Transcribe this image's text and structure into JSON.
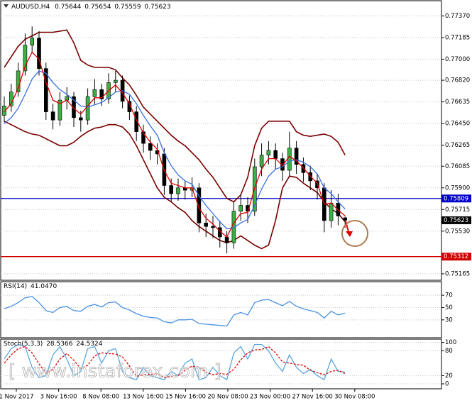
{
  "chart_data": {
    "type": "candlestick",
    "symbol": "AUDUSD,H4",
    "open": [
      0.7652,
      0.766,
      0.7672,
      0.769,
      0.7712,
      0.7718,
      0.7692,
      0.7655,
      0.7648,
      0.7665,
      0.7668,
      0.765,
      0.7648,
      0.7668,
      0.7674,
      0.7666,
      0.768,
      0.7682,
      0.7664,
      0.7655,
      0.7638,
      0.7628,
      0.7622,
      0.7619,
      0.7592,
      0.7585,
      0.759,
      0.7588,
      0.759,
      0.756,
      0.7557,
      0.7556,
      0.7548,
      0.7543,
      0.757,
      0.7575,
      0.757,
      0.7608,
      0.7618,
      0.7622,
      0.7615,
      0.7605,
      0.7624,
      0.761,
      0.7603,
      0.7596,
      0.759,
      0.7562,
      0.7577,
      0.75644
    ],
    "high": [
      0.7668,
      0.7679,
      0.7697,
      0.7722,
      0.7728,
      0.7724,
      0.7697,
      0.7662,
      0.7672,
      0.7676,
      0.7672,
      0.7656,
      0.7675,
      0.7683,
      0.7679,
      0.7688,
      0.769,
      0.7686,
      0.7669,
      0.766,
      0.7644,
      0.7634,
      0.7628,
      0.7624,
      0.7598,
      0.7598,
      0.7596,
      0.7599,
      0.7594,
      0.7568,
      0.7566,
      0.7562,
      0.7553,
      0.7578,
      0.7584,
      0.7582,
      0.7615,
      0.7628,
      0.763,
      0.7628,
      0.762,
      0.7638,
      0.763,
      0.7616,
      0.7609,
      0.7602,
      0.7594,
      0.7588,
      0.7585,
      0.75654
    ],
    "low": [
      0.7646,
      0.7655,
      0.7668,
      0.7686,
      0.7705,
      0.7686,
      0.7648,
      0.764,
      0.7643,
      0.7657,
      0.7642,
      0.7638,
      0.7644,
      0.7661,
      0.766,
      0.7662,
      0.7672,
      0.7658,
      0.7648,
      0.763,
      0.762,
      0.7614,
      0.761,
      0.7584,
      0.7578,
      0.7579,
      0.758,
      0.7582,
      0.7552,
      0.7548,
      0.7547,
      0.7539,
      0.7534,
      0.7538,
      0.7562,
      0.756,
      0.7566,
      0.76,
      0.761,
      0.7606,
      0.7596,
      0.76,
      0.7602,
      0.7595,
      0.7588,
      0.758,
      0.7552,
      0.7556,
      0.7558,
      0.75559
    ],
    "close": [
      0.766,
      0.7672,
      0.769,
      0.7712,
      0.7718,
      0.7692,
      0.7655,
      0.7648,
      0.7665,
      0.7668,
      0.765,
      0.7648,
      0.7668,
      0.7674,
      0.7666,
      0.768,
      0.7682,
      0.7664,
      0.7655,
      0.7638,
      0.7628,
      0.7622,
      0.7619,
      0.7592,
      0.7585,
      0.759,
      0.7588,
      0.759,
      0.756,
      0.7557,
      0.7556,
      0.7548,
      0.7543,
      0.757,
      0.7575,
      0.757,
      0.7608,
      0.7618,
      0.7622,
      0.7615,
      0.7605,
      0.7624,
      0.761,
      0.7603,
      0.7596,
      0.759,
      0.7562,
      0.7577,
      0.7566,
      0.75623
    ],
    "bull_color": "#3cb043",
    "bear_color": "#000000",
    "bands": {
      "color": "#7a0000",
      "upper": [
        0.7693,
        0.7702,
        0.7711,
        0.7717,
        0.772,
        0.7723,
        0.7723,
        0.7723,
        0.7724,
        0.7725,
        0.7714,
        0.7699,
        0.7695,
        0.7693,
        0.7693,
        0.7693,
        0.7691,
        0.7684,
        0.7678,
        0.7669,
        0.7659,
        0.7653,
        0.7647,
        0.7641,
        0.7635,
        0.763,
        0.7626,
        0.762,
        0.7614,
        0.7606,
        0.7599,
        0.759,
        0.7581,
        0.7578,
        0.7584,
        0.7599,
        0.7626,
        0.7641,
        0.7647,
        0.7647,
        0.7647,
        0.7647,
        0.7638,
        0.7635,
        0.7634,
        0.7635,
        0.7636,
        0.7634,
        0.7629,
        0.7618
      ],
      "lower": [
        0.7647,
        0.7644,
        0.7641,
        0.7638,
        0.7636,
        0.7635,
        0.7632,
        0.7629,
        0.7626,
        0.7626,
        0.7629,
        0.7634,
        0.7638,
        0.7641,
        0.7642,
        0.7644,
        0.7644,
        0.7642,
        0.7636,
        0.7626,
        0.7614,
        0.7602,
        0.759,
        0.7582,
        0.7578,
        0.7573,
        0.7569,
        0.7562,
        0.7557,
        0.7553,
        0.7549,
        0.7545,
        0.7543,
        0.7545,
        0.7549,
        0.7545,
        0.7541,
        0.7538,
        0.7541,
        0.7562,
        0.759,
        0.76,
        0.7599,
        0.7594,
        0.759,
        0.7586,
        0.7578,
        0.7572,
        0.7568,
        0.7561
      ]
    },
    "ma_fast": {
      "color": "#e00000",
      "values": [
        0.7655,
        0.7662,
        0.7675,
        0.7694,
        0.7706,
        0.77,
        0.768,
        0.7665,
        0.7662,
        0.7665,
        0.7658,
        0.7653,
        0.766,
        0.7667,
        0.7667,
        0.7673,
        0.7678,
        0.7671,
        0.7662,
        0.7648,
        0.7637,
        0.7629,
        0.7623,
        0.7605,
        0.7594,
        0.7592,
        0.759,
        0.759,
        0.7573,
        0.7564,
        0.7559,
        0.7553,
        0.7548,
        0.756,
        0.7568,
        0.7569,
        0.759,
        0.7606,
        0.7615,
        0.7615,
        0.7609,
        0.7617,
        0.7613,
        0.7607,
        0.76,
        0.7594,
        0.7576,
        0.7577,
        0.7571,
        0.7566
      ]
    },
    "ma_slow": {
      "color": "#3a6fe0",
      "values": [
        0.7645,
        0.765,
        0.7658,
        0.767,
        0.7683,
        0.769,
        0.7688,
        0.768,
        0.7674,
        0.767,
        0.7665,
        0.766,
        0.7659,
        0.7661,
        0.7663,
        0.7667,
        0.7672,
        0.7673,
        0.767,
        0.7662,
        0.7652,
        0.7643,
        0.7635,
        0.762,
        0.7609,
        0.7601,
        0.7596,
        0.7593,
        0.7583,
        0.7575,
        0.7568,
        0.7561,
        0.7555,
        0.7556,
        0.756,
        0.7563,
        0.7575,
        0.7589,
        0.76,
        0.7606,
        0.7608,
        0.7613,
        0.7614,
        0.7612,
        0.7608,
        0.7602,
        0.759,
        0.7585,
        0.7578,
        0.7572
      ]
    },
    "ylim": [
      0.7511,
      0.775
    ],
    "yticks": [
      {
        "value": 0.7737,
        "label": "0.77370"
      },
      {
        "value": 0.77185,
        "label": "0.77185"
      },
      {
        "value": 0.77,
        "label": "0.77000"
      },
      {
        "value": 0.7682,
        "label": "0.76820"
      },
      {
        "value": 0.76635,
        "label": "0.76635"
      },
      {
        "value": 0.7645,
        "label": "0.76450"
      },
      {
        "value": 0.76265,
        "label": "0.76265"
      },
      {
        "value": 0.76085,
        "label": "0.76085"
      },
      {
        "value": 0.759,
        "label": "0.75900"
      },
      {
        "value": 0.75715,
        "label": "0.75715"
      },
      {
        "value": 0.7553,
        "label": "0.75530"
      },
      {
        "value": 0.75165,
        "label": "0.75165"
      }
    ],
    "grid": true,
    "levels": [
      {
        "value": 0.75809,
        "color": "#0000c8"
      },
      {
        "value": 0.75312,
        "color": "#d00000"
      }
    ],
    "xlabels": [
      "1 Nov 2017",
      "3 Nov 16:00",
      "8 Nov 08:00",
      "13 Nov 16:00",
      "15 Nov 16:00",
      "20 Nov 08:00",
      "23 Nov 00:00",
      "27 Nov 16:00",
      "30 Nov 08:00"
    ],
    "rsi": {
      "title": "RSI(14)",
      "value_label": "41.0470",
      "color": "#4a90e2",
      "values": [
        48,
        52,
        58,
        66,
        68,
        58,
        45,
        42,
        50,
        52,
        45,
        44,
        52,
        55,
        51,
        58,
        59,
        50,
        46,
        40,
        36,
        34,
        33,
        27,
        25,
        30,
        30,
        31,
        24,
        23,
        22,
        21,
        20,
        38,
        42,
        38,
        58,
        62,
        63,
        58,
        53,
        60,
        52,
        48,
        45,
        42,
        33,
        44,
        38,
        41.047
      ],
      "ylim": [
        1,
        92
      ],
      "yticks": [
        70,
        50,
        30
      ]
    },
    "stoch": {
      "title": "Stoch(5,3,3)",
      "main_label": "28.5366",
      "signal_label": "24.5324",
      "main_color": "#5aa7e0",
      "signal_color": "#e00000",
      "main": [
        60,
        85,
        95,
        90,
        40,
        15,
        20,
        70,
        90,
        60,
        20,
        30,
        85,
        90,
        50,
        80,
        85,
        30,
        15,
        10,
        40,
        20,
        15,
        10,
        30,
        20,
        50,
        60,
        10,
        15,
        40,
        20,
        10,
        75,
        90,
        60,
        95,
        95,
        80,
        50,
        30,
        70,
        40,
        25,
        35,
        20,
        10,
        60,
        30,
        28.5366
      ],
      "signal": [
        50,
        70,
        85,
        90,
        75,
        48,
        25,
        35,
        60,
        73,
        57,
        37,
        45,
        68,
        75,
        73,
        72,
        65,
        43,
        18,
        22,
        23,
        25,
        15,
        18,
        20,
        33,
        43,
        40,
        28,
        22,
        25,
        23,
        35,
        58,
        75,
        82,
        83,
        90,
        75,
        53,
        50,
        47,
        45,
        33,
        27,
        22,
        30,
        33,
        24.5324
      ],
      "ylim": [
        -12,
        108
      ],
      "yticks": [
        100,
        80,
        20,
        0
      ]
    },
    "watermark": "[ www.instaforex.com ]"
  }
}
